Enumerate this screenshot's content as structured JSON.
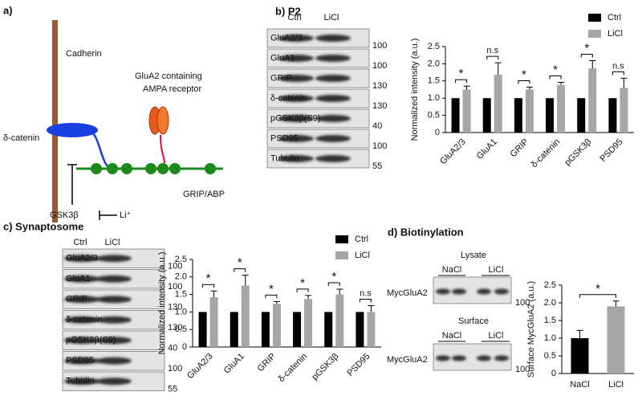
{
  "diagram": {
    "panel_label": "a)",
    "cadherin": "Cadherin",
    "receptor": [
      "GluA2 containing",
      "AMPA receptor"
    ],
    "delta_catenin": "δ-catenin",
    "gsk3b": "GSK3β",
    "li": "Li⁺",
    "grip": "GRIP/ABP"
  },
  "blots": [
    {
      "panel_label": "b) P2",
      "lanes": [
        "Ctrl",
        "LiCl"
      ],
      "rows": [
        {
          "label": "GluA2/3",
          "mw": "100"
        },
        {
          "label": "GluA1",
          "mw": "100"
        },
        {
          "label": "GRIP",
          "mw": "130"
        },
        {
          "label": "δ-catenin",
          "mw": "130"
        },
        {
          "label": "pGSK3β(S9)",
          "mw": "40"
        },
        {
          "label": "PSD95",
          "mw": "100"
        },
        {
          "label": "Tubulin",
          "mw": "55"
        }
      ]
    },
    {
      "panel_label": "c) Synaptosome",
      "lanes": [
        "Ctrl",
        "LiCl"
      ],
      "rows": [
        {
          "label": "GluA2/3",
          "mw": "100"
        },
        {
          "label": "GluA1",
          "mw": "100"
        },
        {
          "label": "GRIP",
          "mw": "130"
        },
        {
          "label": "δ-catenin",
          "mw": "130"
        },
        {
          "label": "pGSK3β(S9)",
          "mw": "40"
        },
        {
          "label": "PSD95",
          "mw": "100"
        },
        {
          "label": "Tubulin",
          "mw": "55"
        }
      ]
    }
  ],
  "biotinylation": {
    "panel_label": "d) Biotinylation",
    "groups": [
      {
        "title": "Lysate",
        "lanes": [
          "NaCl",
          "LiCl"
        ],
        "label": "MycGluA2",
        "mw": "100"
      },
      {
        "title": "Surface",
        "lanes": [
          "NaCl",
          "LiCl"
        ],
        "label": "MycGluA2",
        "mw": "100"
      }
    ]
  },
  "chart_data": [
    {
      "type": "bar",
      "ylabel": "Normalized intensity (a.u.)",
      "categories": [
        "GluA2/3",
        "GluA1",
        "GRIP",
        "δ-catenin",
        "pGSK3β",
        "PSD95"
      ],
      "series": [
        {
          "name": "Ctrl",
          "color": "#000000",
          "values": [
            1,
            1,
            1,
            1,
            1,
            1
          ]
        },
        {
          "name": "LiCl",
          "color": "#a6a6a6",
          "values": [
            1.25,
            1.68,
            1.25,
            1.38,
            1.87,
            1.3
          ],
          "errors": [
            0.1,
            0.35,
            0.07,
            0.08,
            0.22,
            0.28
          ]
        }
      ],
      "annotations": [
        "*",
        "n.s",
        "*",
        "*",
        "*",
        "n.s"
      ],
      "ylim": [
        0,
        2.5
      ],
      "yticks": [
        0,
        0.5,
        {
          "value": 1,
          "label": "1.0"
        },
        1.5,
        {
          "value": 2,
          "label": "2.0"
        },
        2.5
      ]
    },
    {
      "type": "bar",
      "ylabel": "Normalized intensity (a.u.)",
      "categories": [
        "GluA2/3",
        "GluA1",
        "GRIP",
        "δ-catenin",
        "pGSK3β",
        "PSD95"
      ],
      "series": [
        {
          "name": "Ctrl",
          "color": "#000000",
          "values": [
            1,
            1,
            1,
            1,
            1,
            1
          ]
        },
        {
          "name": "LiCl",
          "color": "#a6a6a6",
          "values": [
            1.42,
            1.75,
            1.23,
            1.37,
            1.5,
            1.0
          ],
          "errors": [
            0.18,
            0.3,
            0.07,
            0.1,
            0.15,
            0.18
          ]
        }
      ],
      "annotations": [
        "*",
        "*",
        "*",
        "*",
        "*",
        "n.s"
      ],
      "ylim": [
        0,
        2.5
      ],
      "yticks": [
        0,
        0.5,
        {
          "value": 1,
          "label": "1.0"
        },
        1.5,
        {
          "value": 2,
          "label": "2.0"
        },
        2.5
      ]
    },
    {
      "type": "bar",
      "ylabel": "Surface MycGluA2 (a.u.)",
      "categories": [
        "NaCl",
        "LiCl"
      ],
      "values": [
        1.0,
        1.9
      ],
      "errors": [
        0.22,
        0.15
      ],
      "colors": [
        "#000000",
        "#a6a6a6"
      ],
      "annotation": "*",
      "ylim": [
        0,
        2.5
      ],
      "yticks": [
        0,
        0.5,
        {
          "value": 1,
          "label": "1.0"
        },
        1.5,
        {
          "value": 2,
          "label": "2.0"
        },
        2.5
      ]
    }
  ]
}
